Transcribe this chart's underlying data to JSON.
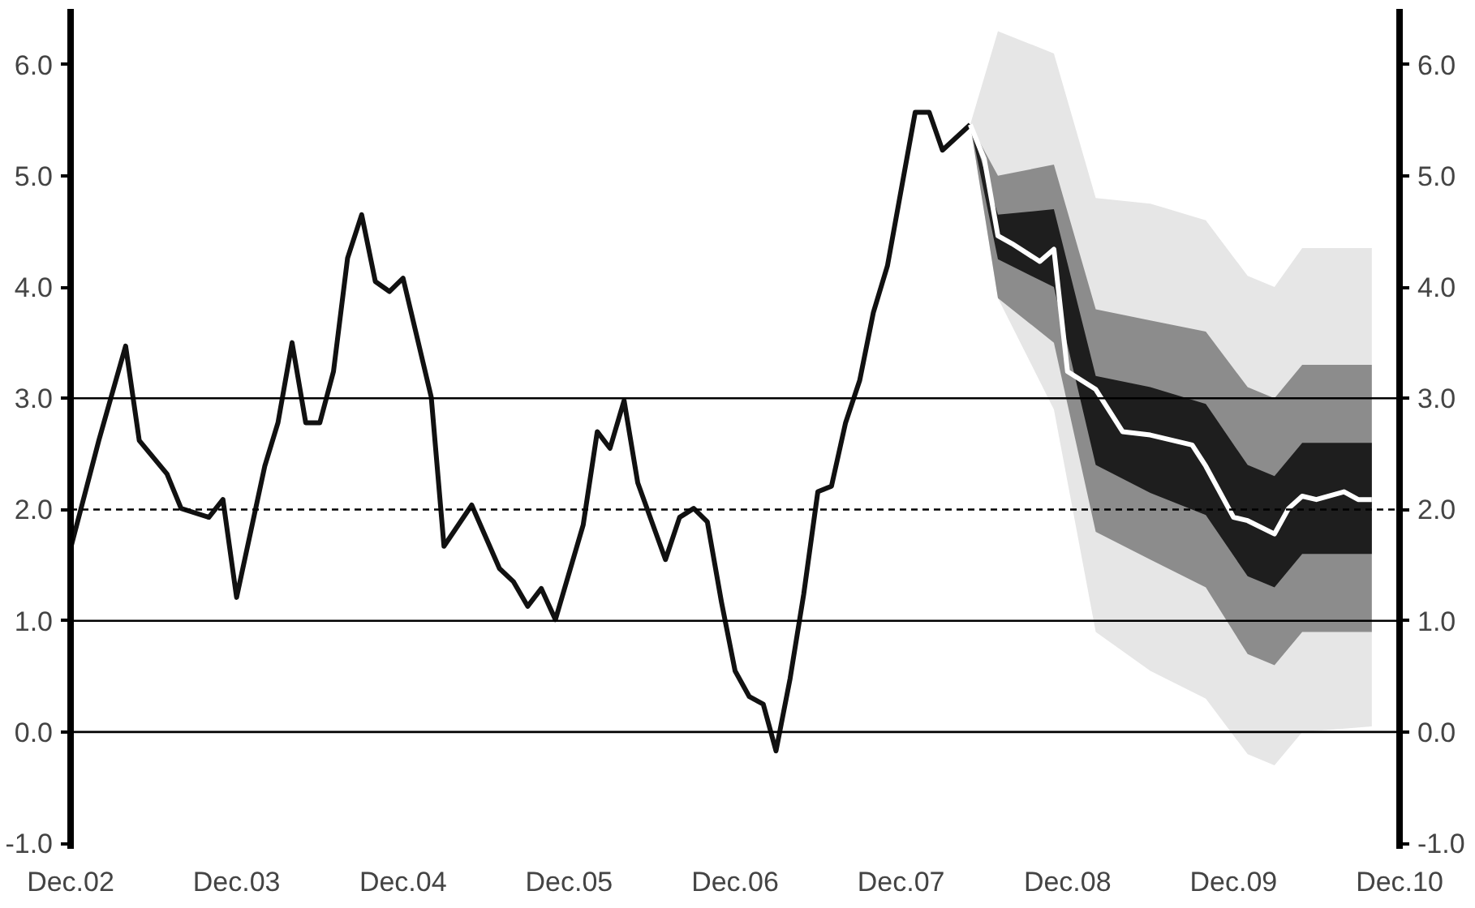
{
  "chart_data": {
    "type": "line",
    "xlim": [
      "2002-12",
      "2010-12"
    ],
    "xticks": [
      {
        "value": "2002-12",
        "label": "Dec.02"
      },
      {
        "value": "2003-12",
        "label": "Dec.03"
      },
      {
        "value": "2004-12",
        "label": "Dec.04"
      },
      {
        "value": "2005-12",
        "label": "Dec.05"
      },
      {
        "value": "2006-12",
        "label": "Dec.06"
      },
      {
        "value": "2007-12",
        "label": "Dec.07"
      },
      {
        "value": "2008-12",
        "label": "Dec.08"
      },
      {
        "value": "2009-12",
        "label": "Dec.09"
      },
      {
        "value": "2010-12",
        "label": "Dec.10"
      }
    ],
    "ylim": [
      -1.05,
      6.5
    ],
    "yticks": [
      {
        "value": -1,
        "label": "-1.0"
      },
      {
        "value": 0,
        "label": "0.0"
      },
      {
        "value": 1,
        "label": "1.0"
      },
      {
        "value": 2,
        "label": "2.0"
      },
      {
        "value": 3,
        "label": "3.0"
      },
      {
        "value": 4,
        "label": "4.0"
      },
      {
        "value": 5,
        "label": "5.0"
      },
      {
        "value": 6,
        "label": "6.0"
      }
    ],
    "y2lim": [
      -1.05,
      6.5
    ],
    "y2ticks": [
      {
        "value": -1,
        "label": "-1.0"
      },
      {
        "value": 0,
        "label": "0.0"
      },
      {
        "value": 1,
        "label": "1.0"
      },
      {
        "value": 2,
        "label": "2.0"
      },
      {
        "value": 3,
        "label": "3.0"
      },
      {
        "value": 4,
        "label": "4.0"
      },
      {
        "value": 5,
        "label": "5.0"
      },
      {
        "value": 6,
        "label": "6.0"
      }
    ],
    "grid": false,
    "ref_lines": [
      {
        "axis": "y",
        "value": 0,
        "color": "#000000",
        "line_style": "solid"
      },
      {
        "axis": "y",
        "value": 1,
        "color": "#000000",
        "line_style": "solid"
      },
      {
        "axis": "y",
        "value": 2,
        "color": "#000000",
        "line_style": "dashed"
      },
      {
        "axis": "y",
        "value": 3,
        "color": "#000000",
        "line_style": "solid"
      }
    ],
    "series": [
      {
        "color": "#e6e6e6",
        "x": [
          "2008-05",
          "2008-07",
          "2008-11",
          "2009-02",
          "2009-06",
          "2009-10",
          "2010-01",
          "2010-03",
          "2010-05",
          "2010-10"
        ],
        "values": [
          null,
          null,
          null,
          null,
          null,
          null,
          null,
          null,
          null,
          null
        ],
        "lower": [
          5.46,
          3.9,
          2.9,
          0.9,
          0.55,
          0.3,
          -0.2,
          -0.3,
          0.0,
          0.05
        ],
        "upper": [
          5.46,
          6.3,
          6.1,
          4.8,
          4.75,
          4.6,
          4.1,
          4.0,
          4.35,
          4.35
        ]
      },
      {
        "color": "#8c8c8c",
        "x": [
          "2008-05",
          "2008-07",
          "2008-11",
          "2009-02",
          "2009-06",
          "2009-10",
          "2010-01",
          "2010-03",
          "2010-05",
          "2010-10"
        ],
        "values": [
          null,
          null,
          null,
          null,
          null,
          null,
          null,
          null,
          null,
          null
        ],
        "lower": [
          5.46,
          3.9,
          3.5,
          1.8,
          1.55,
          1.3,
          0.7,
          0.6,
          0.9,
          0.9
        ],
        "upper": [
          5.46,
          5.0,
          5.1,
          3.8,
          3.7,
          3.6,
          3.1,
          3.0,
          3.3,
          3.3
        ]
      },
      {
        "color": "#1e1e1e",
        "x": [
          "2008-05",
          "2008-07",
          "2008-11",
          "2009-02",
          "2009-06",
          "2009-10",
          "2010-01",
          "2010-03",
          "2010-05",
          "2010-10"
        ],
        "values": [
          null,
          null,
          null,
          null,
          null,
          null,
          null,
          null,
          null,
          null
        ],
        "lower": [
          5.46,
          4.25,
          4.0,
          2.4,
          2.15,
          1.95,
          1.4,
          1.3,
          1.6,
          1.6
        ],
        "upper": [
          5.46,
          4.65,
          4.7,
          3.2,
          3.1,
          2.95,
          2.4,
          2.3,
          2.6,
          2.6
        ]
      },
      {
        "color": "#111111",
        "x": [
          "2002-12",
          "2003-02",
          "2003-04",
          "2003-05",
          "2003-07",
          "2003-08",
          "2003-10",
          "2003-11",
          "2003-12",
          "2004-02",
          "2004-03",
          "2004-04",
          "2004-05",
          "2004-06",
          "2004-07",
          "2004-08",
          "2004-09",
          "2004-10",
          "2004-11",
          "2004-12",
          "2005-02",
          "2005-03",
          "2005-05",
          "2005-07",
          "2005-08",
          "2005-09",
          "2005-10",
          "2005-11",
          "2006-01",
          "2006-02",
          "2006-03",
          "2006-04",
          "2006-05",
          "2006-07",
          "2006-08",
          "2006-09",
          "2006-10",
          "2006-11",
          "2006-12",
          "2007-01",
          "2007-02",
          "2007-03",
          "2007-04",
          "2007-05",
          "2007-06",
          "2007-07",
          "2007-08",
          "2007-09",
          "2007-10",
          "2007-11",
          "2008-01",
          "2008-02",
          "2008-03",
          "2008-05"
        ],
        "values": [
          1.65,
          2.62,
          3.47,
          2.62,
          2.32,
          2.01,
          1.93,
          2.09,
          1.21,
          2.39,
          2.78,
          3.5,
          2.78,
          2.78,
          3.24,
          4.26,
          4.65,
          4.05,
          3.96,
          4.08,
          3.01,
          1.67,
          2.04,
          1.47,
          1.35,
          1.13,
          1.29,
          1.01,
          1.86,
          2.7,
          2.55,
          2.98,
          2.24,
          1.55,
          1.93,
          2.01,
          1.89,
          1.17,
          0.55,
          0.32,
          0.25,
          -0.17,
          0.48,
          1.24,
          2.16,
          2.21,
          2.78,
          3.16,
          3.77,
          4.19,
          5.57,
          5.57,
          5.23,
          5.46
        ]
      },
      {
        "color": "#ffffff",
        "x": [
          "2008-05",
          "2008-06",
          "2008-07",
          "2008-08",
          "2008-10",
          "2008-11",
          "2008-12",
          "2009-02",
          "2009-04",
          "2009-06",
          "2009-09",
          "2009-10",
          "2009-12",
          "2010-01",
          "2010-03",
          "2010-04",
          "2010-05",
          "2010-06",
          "2010-08",
          "2010-09",
          "2010-10"
        ],
        "values": [
          5.46,
          5.15,
          4.46,
          4.39,
          4.23,
          4.34,
          3.24,
          3.08,
          2.7,
          2.67,
          2.58,
          2.39,
          1.93,
          1.9,
          1.78,
          2.01,
          2.12,
          2.09,
          2.16,
          2.09,
          2.09
        ]
      }
    ]
  }
}
